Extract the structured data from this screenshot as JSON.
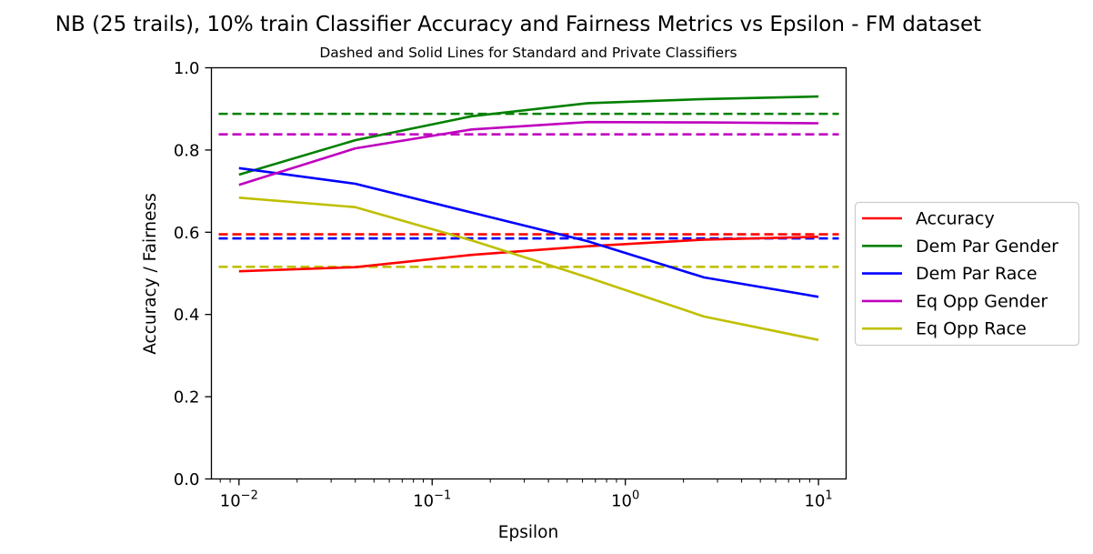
{
  "chart_data": {
    "type": "line",
    "title": "NB (25 trails), 10% train Classifier Accuracy and Fairness Metrics vs Epsilon - FM dataset",
    "subtitle": "Dashed and Solid Lines for Standard and Private Classifiers",
    "xlabel": "Epsilon",
    "ylabel": "Accuracy / Fairness",
    "xscale": "log",
    "xlim": [
      0.0072,
      13.9
    ],
    "ylim": [
      0,
      1
    ],
    "x_ticks": [
      {
        "value": 0.01,
        "base": "10",
        "exp": "−2"
      },
      {
        "value": 0.1,
        "base": "10",
        "exp": "−1"
      },
      {
        "value": 1,
        "base": "10",
        "exp": "0"
      },
      {
        "value": 10,
        "base": "10",
        "exp": "1"
      }
    ],
    "y_ticks": [
      {
        "value": 0.0,
        "label": "0.0"
      },
      {
        "value": 0.2,
        "label": "0.2"
      },
      {
        "value": 0.4,
        "label": "0.4"
      },
      {
        "value": 0.6,
        "label": "0.6"
      },
      {
        "value": 0.8,
        "label": "0.8"
      },
      {
        "value": 1.0,
        "label": "1.0"
      }
    ],
    "grid": false,
    "legend_position": "right (outside plot)",
    "x": [
      0.01,
      0.04,
      0.16,
      0.64,
      2.56,
      10
    ],
    "series": [
      {
        "name": "Accuracy",
        "color": "#ff0000",
        "values": [
          0.505,
          0.515,
          0.545,
          0.566,
          0.582,
          0.589
        ],
        "baseline": 0.595
      },
      {
        "name": "Dem Par Gender",
        "color": "#008000",
        "values": [
          0.74,
          0.824,
          0.882,
          0.914,
          0.924,
          0.93
        ],
        "baseline": 0.888
      },
      {
        "name": "Dem Par Race",
        "color": "#0000ff",
        "values": [
          0.756,
          0.718,
          0.648,
          0.578,
          0.49,
          0.443
        ],
        "baseline": 0.585
      },
      {
        "name": "Eq Opp Gender",
        "color": "#bf00bf",
        "values": [
          0.715,
          0.804,
          0.85,
          0.868,
          0.867,
          0.865
        ],
        "baseline": 0.838
      },
      {
        "name": "Eq Opp Race",
        "color": "#bfbf00",
        "values": [
          0.684,
          0.661,
          0.58,
          0.49,
          0.395,
          0.338
        ],
        "baseline": 0.516
      }
    ],
    "line_styles": {
      "private": "solid",
      "standard": "dashed"
    }
  }
}
